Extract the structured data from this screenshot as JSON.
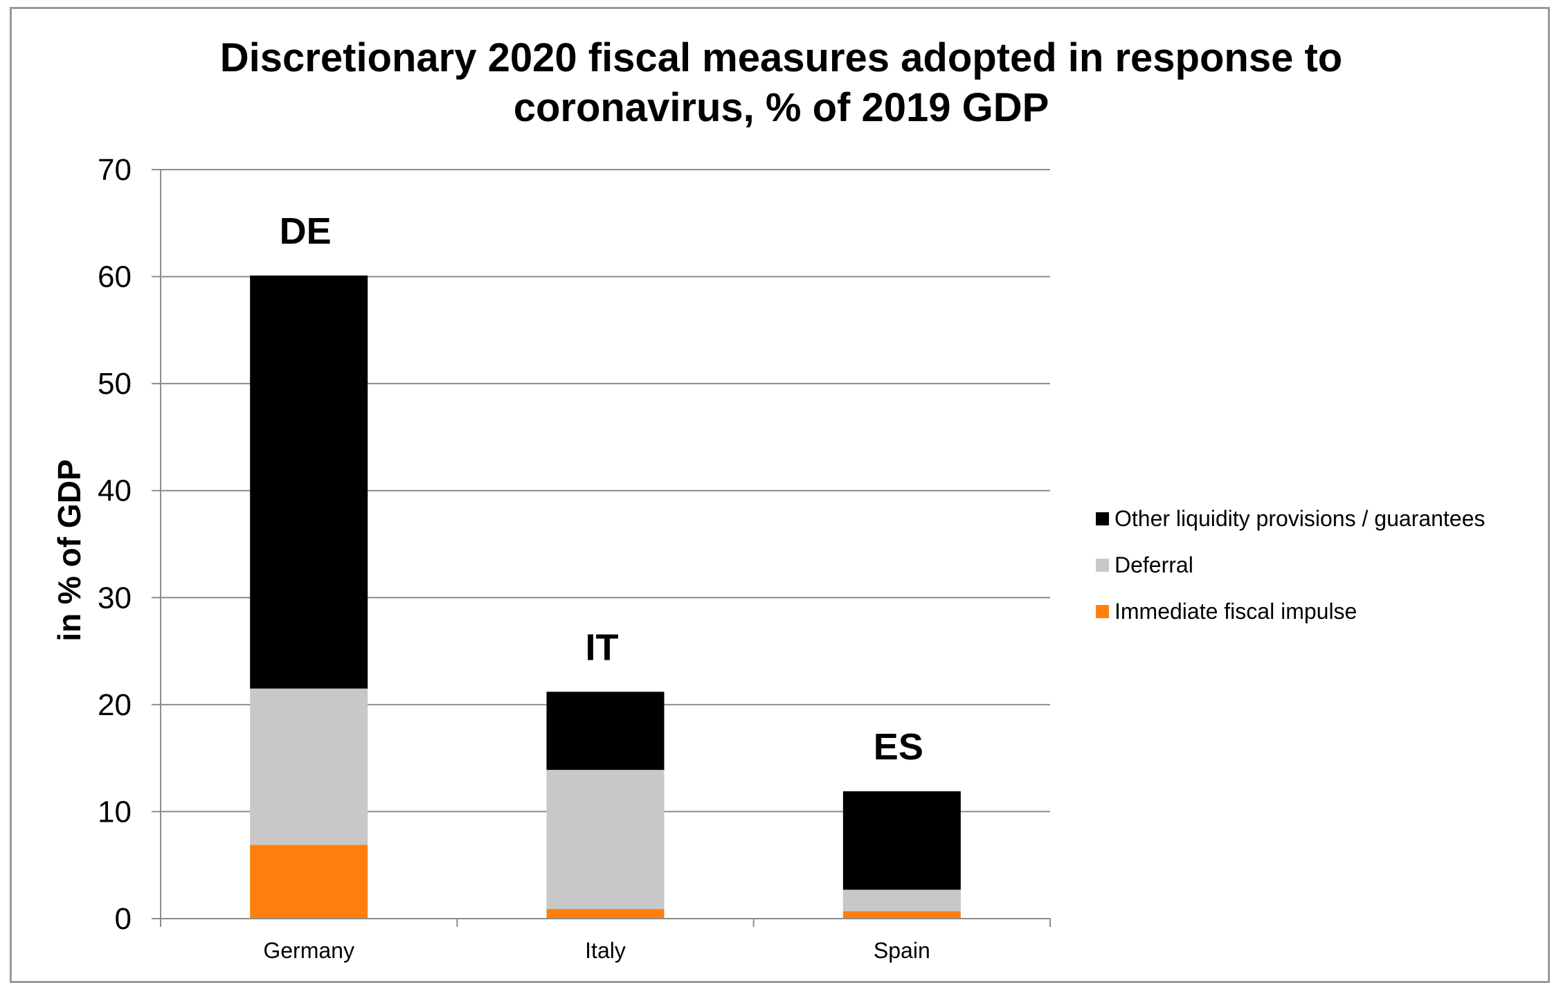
{
  "chart_data": {
    "type": "bar",
    "stacked": true,
    "title": "Discretionary 2020 fiscal measures adopted in response to coronavirus, % of 2019 GDP",
    "title_lines": [
      "Discretionary 2020 fiscal measures adopted in response to",
      "coronavirus, % of 2019 GDP"
    ],
    "xlabel": "",
    "ylabel": "in % of GDP",
    "ylim": [
      0,
      70
    ],
    "yticks": [
      0,
      10,
      20,
      30,
      40,
      50,
      60,
      70
    ],
    "grid": true,
    "legend_position": "right",
    "categories": [
      "Germany",
      "Italy",
      "Spain"
    ],
    "annotations": [
      "DE",
      "IT",
      "ES"
    ],
    "series": [
      {
        "name": "Immediate fiscal impulse",
        "color": "#ff7f0e",
        "values": [
          6.9,
          0.9,
          0.7
        ]
      },
      {
        "name": "Deferral",
        "color": "#c8c8c8",
        "values": [
          14.6,
          13.0,
          2.0
        ]
      },
      {
        "name": "Other liquidity provisions / guarantees",
        "color": "#000000",
        "values": [
          38.6,
          7.3,
          9.2
        ]
      }
    ],
    "legend_order": [
      2,
      1,
      0
    ]
  }
}
